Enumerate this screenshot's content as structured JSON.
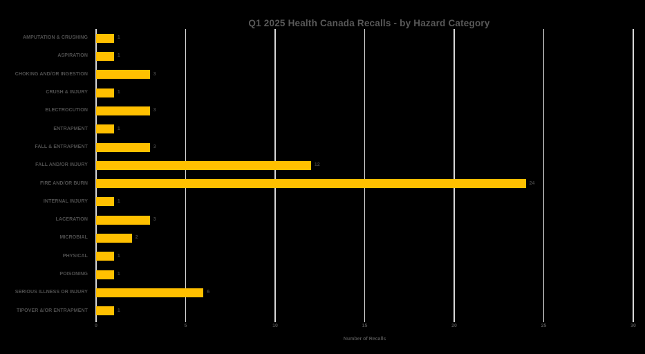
{
  "chart_data": {
    "type": "bar",
    "orientation": "horizontal",
    "title": "Q1 2025 Health Canada Recalls - by Hazard Category",
    "xlabel": "Number of Recalls",
    "ylabel": "",
    "categories": [
      "AMPUTATION & CRUSHING",
      "ASPIRATION",
      "CHOKING AND/OR INGESTION",
      "CRUSH & INJURY",
      "ELECTROCUTION",
      "ENTRAPMENT",
      "FALL & ENTRAPMENT",
      "FALL AND/OR INJURY",
      "FIRE AND/OR BURN",
      "INTERNAL INJURY",
      "LACERATION",
      "MICROBIAL",
      "PHYSICAL",
      "POISONING",
      "SERIOUS ILLNESS OR INJURY",
      "TIPOVER &/OR ENTRAPMENT"
    ],
    "values": [
      1,
      1,
      3,
      1,
      3,
      1,
      3,
      12,
      24,
      1,
      3,
      2,
      1,
      1,
      6,
      1
    ],
    "xlim": [
      0,
      30
    ],
    "xticks": [
      0,
      5,
      10,
      15,
      20,
      25,
      30
    ],
    "grid": true,
    "data_labels": true,
    "legend": "none",
    "colors": {
      "background": "#000000",
      "bar": "#FFC000",
      "gridline": "#D9D9D9",
      "title_text": "#595959",
      "axis_text": "#4f4f4f",
      "value_text": "#404040"
    }
  }
}
